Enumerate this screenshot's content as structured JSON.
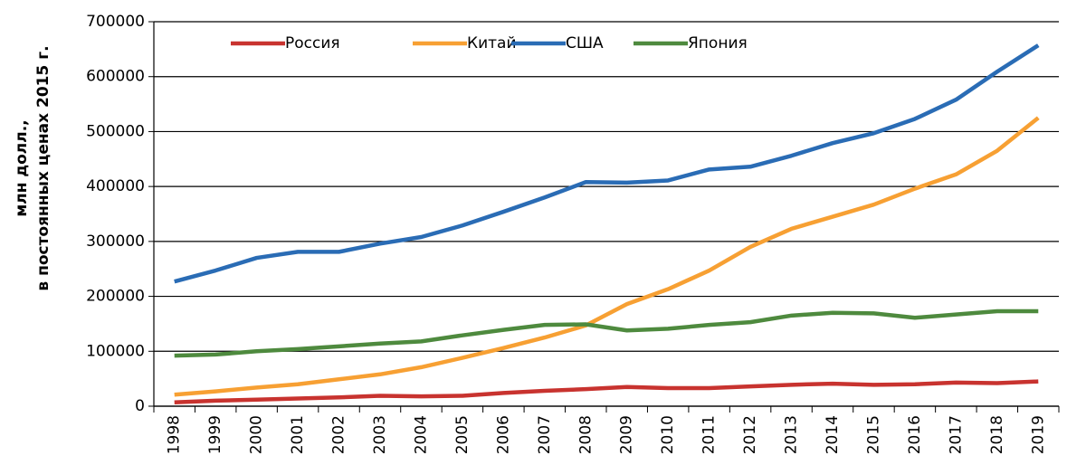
{
  "chart_data": {
    "type": "line",
    "ylabel": [
      "млн долл.,",
      "в постоянных ценах 2015 г."
    ],
    "categories": [
      "1998",
      "1999",
      "2000",
      "2001",
      "2002",
      "2003",
      "2004",
      "2005",
      "2006",
      "2007",
      "2008",
      "2009",
      "2010",
      "2011",
      "2012",
      "2013",
      "2014",
      "2015",
      "2016",
      "2017",
      "2018",
      "2019"
    ],
    "series": [
      {
        "name": "Россия",
        "color": "#c8332f",
        "values": [
          7000,
          10000,
          12000,
          14000,
          16000,
          19000,
          18000,
          19000,
          24000,
          28000,
          31000,
          35000,
          33000,
          33000,
          36000,
          39000,
          41000,
          39000,
          40000,
          43000,
          42000,
          45000
        ]
      },
      {
        "name": "Китай",
        "color": "#f7a033",
        "values": [
          21000,
          27000,
          34000,
          40000,
          49000,
          58000,
          71000,
          88000,
          106000,
          125000,
          147000,
          186000,
          213000,
          247000,
          290000,
          323000,
          345000,
          367000,
          396000,
          422000,
          465000,
          525000
        ]
      },
      {
        "name": "США",
        "color": "#2a6cb5",
        "values": [
          227000,
          247000,
          270000,
          281000,
          281000,
          296000,
          308000,
          329000,
          354000,
          380000,
          408000,
          407000,
          411000,
          431000,
          436000,
          456000,
          479000,
          497000,
          523000,
          558000,
          609000,
          657000
        ]
      },
      {
        "name": "Япония",
        "color": "#4e8a3e",
        "values": [
          92000,
          94000,
          100000,
          104000,
          109000,
          114000,
          118000,
          129000,
          139000,
          148000,
          149000,
          138000,
          141000,
          148000,
          153000,
          165000,
          170000,
          169000,
          161000,
          167000,
          173000,
          173000
        ]
      }
    ],
    "ylim": [
      0,
      700000
    ],
    "yticks": [
      0,
      100000,
      200000,
      300000,
      400000,
      500000,
      600000,
      700000
    ],
    "grid": true
  }
}
